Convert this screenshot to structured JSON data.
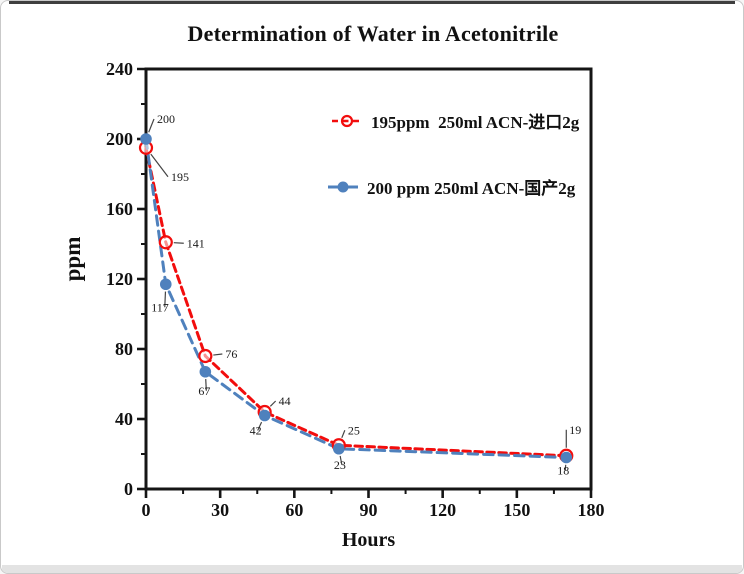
{
  "window": {
    "background": "#ffffff",
    "border_color": "#c9c9c9",
    "top_line_color": "#3f3f3f",
    "bottom_strip_color": "#e3e3e3"
  },
  "chart_data": {
    "type": "line",
    "title": "Determination of Water in Acetonitrile",
    "xlabel": "Hours",
    "ylabel": "ppm",
    "xlim": [
      0,
      180
    ],
    "ylim": [
      0,
      240
    ],
    "x_ticks": [
      0,
      30,
      60,
      90,
      120,
      150,
      180
    ],
    "y_ticks": [
      0,
      40,
      80,
      120,
      160,
      200,
      240
    ],
    "x_minor_step": 15,
    "y_minor_step": 20,
    "grid": false,
    "legend_position": "upper-right-inside",
    "axis_color": "#151515",
    "series": [
      {
        "name": "195ppm  250ml ACN-进口2g",
        "color": "#f20d0d",
        "line_style": "dashed",
        "marker": "open-circle",
        "points": [
          {
            "x": 0,
            "y": 195,
            "label": "195",
            "label_dx": 25,
            "label_dy": 33
          },
          {
            "x": 8,
            "y": 141,
            "label": "141",
            "label_dx": 21,
            "label_dy": 5
          },
          {
            "x": 24,
            "y": 76,
            "label": "76",
            "label_dx": 20,
            "label_dy": 2
          },
          {
            "x": 48,
            "y": 44,
            "label": "44",
            "label_dx": 14,
            "label_dy": -7
          },
          {
            "x": 78,
            "y": 25,
            "label": "25",
            "label_dx": 9,
            "label_dy": -11
          },
          {
            "x": 170,
            "y": 19,
            "label": "19",
            "label_dx": 3,
            "label_dy": -22
          }
        ]
      },
      {
        "name": "200 ppm 250ml ACN-国产2g",
        "color": "#4f81bd",
        "line_style": "dashed",
        "marker": "filled-circle",
        "points": [
          {
            "x": 0,
            "y": 200,
            "label": "200",
            "label_dx": 11,
            "label_dy": -16
          },
          {
            "x": 8,
            "y": 117,
            "label": "117",
            "label_dx": -11,
            "label_dy": 27
          },
          {
            "x": 24,
            "y": 67,
            "label": "67",
            "label_dx": -9,
            "label_dy": 23
          },
          {
            "x": 48,
            "y": 42,
            "label": "42",
            "label_dx": -17,
            "label_dy": 19
          },
          {
            "x": 78,
            "y": 23,
            "label": "23",
            "label_dx": -7,
            "label_dy": 20
          },
          {
            "x": 170,
            "y": 18,
            "label": "18",
            "label_dx": -11,
            "label_dy": 17
          }
        ]
      }
    ]
  }
}
